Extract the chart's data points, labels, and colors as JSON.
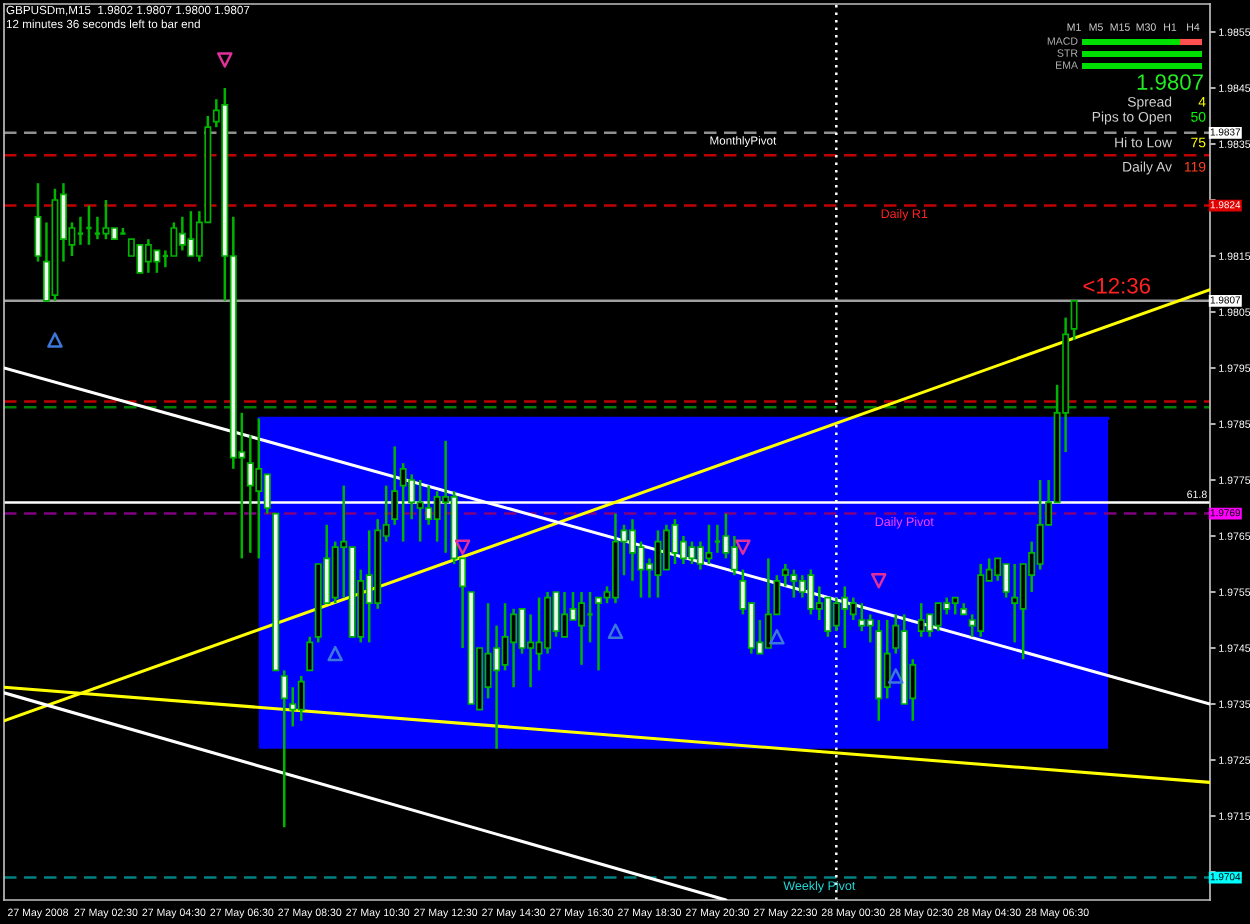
{
  "chart_data": {
    "type": "candlestick",
    "title": "GBPUSDm,M15  1.9802 1.9807 1.9800 1.9807",
    "subtitle": "12 minutes 36 seconds left to bar end",
    "x": [
      "2008-05-27T00:30",
      "2008-05-27T00:45",
      "2008-05-27T01:00",
      "2008-05-27T01:15",
      "2008-05-27T01:30",
      "2008-05-27T01:45",
      "2008-05-27T02:00",
      "2008-05-27T02:15",
      "2008-05-27T02:30",
      "2008-05-27T02:45",
      "2008-05-27T03:00",
      "2008-05-27T03:15",
      "2008-05-27T03:30",
      "2008-05-27T03:45",
      "2008-05-27T04:00",
      "2008-05-27T04:15",
      "2008-05-27T04:30",
      "2008-05-27T04:45",
      "2008-05-27T05:00",
      "2008-05-27T05:15",
      "2008-05-27T05:30",
      "2008-05-27T05:45",
      "2008-05-27T06:00",
      "2008-05-27T06:15",
      "2008-05-27T06:30",
      "2008-05-27T06:45",
      "2008-05-27T07:00",
      "2008-05-27T07:15",
      "2008-05-27T07:30",
      "2008-05-27T07:45",
      "2008-05-27T08:00",
      "2008-05-27T08:15",
      "2008-05-27T08:30",
      "2008-05-27T08:45",
      "2008-05-27T09:00",
      "2008-05-27T09:15",
      "2008-05-27T09:30",
      "2008-05-27T09:45",
      "2008-05-27T10:00",
      "2008-05-27T10:15",
      "2008-05-27T10:30",
      "2008-05-27T10:45",
      "2008-05-27T11:00",
      "2008-05-27T11:15",
      "2008-05-27T11:30",
      "2008-05-27T11:45",
      "2008-05-27T12:00",
      "2008-05-27T12:15",
      "2008-05-27T12:30",
      "2008-05-27T12:45",
      "2008-05-27T13:00",
      "2008-05-27T13:15",
      "2008-05-27T13:30",
      "2008-05-27T13:45",
      "2008-05-27T14:00",
      "2008-05-27T14:15",
      "2008-05-27T14:30",
      "2008-05-27T14:45",
      "2008-05-27T15:00",
      "2008-05-27T15:15",
      "2008-05-27T15:30",
      "2008-05-27T15:45",
      "2008-05-27T16:00",
      "2008-05-27T16:15",
      "2008-05-27T16:30",
      "2008-05-27T16:45",
      "2008-05-27T17:00",
      "2008-05-27T17:15",
      "2008-05-27T17:30",
      "2008-05-27T17:45",
      "2008-05-27T18:00",
      "2008-05-27T18:15",
      "2008-05-27T18:30",
      "2008-05-27T18:45",
      "2008-05-27T19:00",
      "2008-05-27T19:15",
      "2008-05-27T19:30",
      "2008-05-27T19:45",
      "2008-05-27T20:00",
      "2008-05-27T20:15",
      "2008-05-27T20:30",
      "2008-05-27T20:45",
      "2008-05-27T21:00",
      "2008-05-27T21:15",
      "2008-05-27T21:30",
      "2008-05-27T21:45",
      "2008-05-27T22:00",
      "2008-05-27T22:15",
      "2008-05-27T22:30",
      "2008-05-27T22:45",
      "2008-05-27T23:00",
      "2008-05-27T23:15",
      "2008-05-27T23:30",
      "2008-05-27T23:45",
      "2008-05-28T00:00",
      "2008-05-28T00:15",
      "2008-05-28T00:30",
      "2008-05-28T00:45",
      "2008-05-28T01:00",
      "2008-05-28T01:15",
      "2008-05-28T01:30",
      "2008-05-28T01:45",
      "2008-05-28T02:00",
      "2008-05-28T02:15",
      "2008-05-28T02:30",
      "2008-05-28T02:45",
      "2008-05-28T03:00",
      "2008-05-28T03:15",
      "2008-05-28T03:30",
      "2008-05-28T03:45",
      "2008-05-28T04:00",
      "2008-05-28T04:15",
      "2008-05-28T04:30",
      "2008-05-28T04:45",
      "2008-05-28T05:00",
      "2008-05-28T05:15",
      "2008-05-28T05:30",
      "2008-05-28T05:45",
      "2008-05-28T06:00",
      "2008-05-28T06:15",
      "2008-05-28T06:30",
      "2008-05-28T06:45",
      "2008-05-28T07:00"
    ],
    "ohlc": [
      [
        1.9822,
        1.9828,
        1.9814,
        1.9815
      ],
      [
        1.9814,
        1.9821,
        1.9807,
        1.9807
      ],
      [
        1.9808,
        1.9827,
        1.9807,
        1.9825
      ],
      [
        1.9826,
        1.9828,
        1.9814,
        1.9818
      ],
      [
        1.9817,
        1.9821,
        1.9815,
        1.982
      ],
      [
        1.9819,
        1.9822,
        1.9817,
        1.9819
      ],
      [
        1.982,
        1.9824,
        1.9817,
        1.982
      ],
      [
        1.9819,
        1.9822,
        1.9818,
        1.9819
      ],
      [
        1.9819,
        1.9825,
        1.9818,
        1.982
      ],
      [
        1.982,
        1.982,
        1.9818,
        1.9818
      ],
      [
        1.9819,
        1.982,
        1.9819,
        1.9819
      ],
      [
        1.9815,
        1.9818,
        1.9815,
        1.9818
      ],
      [
        1.9817,
        1.9817,
        1.9812,
        1.9812
      ],
      [
        1.9814,
        1.9818,
        1.9812,
        1.9817
      ],
      [
        1.9816,
        1.9816,
        1.9812,
        1.9814
      ],
      [
        1.9815,
        1.9816,
        1.9813,
        1.9815
      ],
      [
        1.9815,
        1.9821,
        1.9815,
        1.982
      ],
      [
        1.9819,
        1.9822,
        1.9816,
        1.9817
      ],
      [
        1.9818,
        1.9823,
        1.9815,
        1.9815
      ],
      [
        1.9815,
        1.9823,
        1.9814,
        1.9821
      ],
      [
        1.9821,
        1.984,
        1.9821,
        1.9838
      ],
      [
        1.9839,
        1.9843,
        1.9838,
        1.9841
      ],
      [
        1.9842,
        1.9845,
        1.9807,
        1.9815
      ],
      [
        1.9815,
        1.9822,
        1.9777,
        1.9779
      ],
      [
        1.978,
        1.9787,
        1.9761,
        1.9779
      ],
      [
        1.9778,
        1.9783,
        1.9762,
        1.9774
      ],
      [
        1.9773,
        1.9786,
        1.9761,
        1.9777
      ],
      [
        1.9776,
        1.9776,
        1.9769,
        1.977
      ],
      [
        1.9769,
        1.9769,
        1.9741,
        1.9741
      ],
      [
        1.974,
        1.9741,
        1.9713,
        1.9736
      ],
      [
        1.9735,
        1.9738,
        1.9731,
        1.9734
      ],
      [
        1.9734,
        1.974,
        1.9732,
        1.9739
      ],
      [
        1.9741,
        1.9747,
        1.9741,
        1.9746
      ],
      [
        1.9747,
        1.976,
        1.9746,
        1.976
      ],
      [
        1.9761,
        1.9767,
        1.9753,
        1.9753
      ],
      [
        1.9754,
        1.9764,
        1.9753,
        1.9763
      ],
      [
        1.9763,
        1.9774,
        1.9754,
        1.9764
      ],
      [
        1.9763,
        1.9763,
        1.9747,
        1.9747
      ],
      [
        1.9747,
        1.9759,
        1.9746,
        1.9757
      ],
      [
        1.9758,
        1.9766,
        1.9746,
        1.9753
      ],
      [
        1.9753,
        1.9768,
        1.9752,
        1.9766
      ],
      [
        1.9765,
        1.9774,
        1.9764,
        1.9767
      ],
      [
        1.9768,
        1.9781,
        1.9767,
        1.9773
      ],
      [
        1.9774,
        1.9778,
        1.9764,
        1.9777
      ],
      [
        1.9775,
        1.9776,
        1.9768,
        1.9771
      ],
      [
        1.977,
        1.9775,
        1.9764,
        1.9771
      ],
      [
        1.977,
        1.9774,
        1.9767,
        1.9768
      ],
      [
        1.9768,
        1.9773,
        1.9764,
        1.9772
      ],
      [
        1.9771,
        1.9782,
        1.9762,
        1.9772
      ],
      [
        1.9772,
        1.9773,
        1.976,
        1.9761
      ],
      [
        1.9761,
        1.9761,
        1.9745,
        1.9756
      ],
      [
        1.9755,
        1.9755,
        1.9735,
        1.9735
      ],
      [
        1.9734,
        1.9745,
        1.9734,
        1.9745
      ],
      [
        1.9738,
        1.9753,
        1.9736,
        1.9744
      ],
      [
        1.9745,
        1.9749,
        1.9727,
        1.9741
      ],
      [
        1.9742,
        1.9753,
        1.9741,
        1.9747
      ],
      [
        1.9746,
        1.9752,
        1.9738,
        1.9751
      ],
      [
        1.9752,
        1.9752,
        1.9744,
        1.9745
      ],
      [
        1.9745,
        1.9751,
        1.9738,
        1.9746
      ],
      [
        1.9744,
        1.9754,
        1.9741,
        1.9746
      ],
      [
        1.9745,
        1.9755,
        1.9744,
        1.9754
      ],
      [
        1.9755,
        1.9755,
        1.9747,
        1.9748
      ],
      [
        1.9747,
        1.9755,
        1.9747,
        1.9751
      ],
      [
        1.9752,
        1.9755,
        1.975,
        1.975
      ],
      [
        1.9749,
        1.9755,
        1.9742,
        1.9753
      ],
      [
        1.9751,
        1.9755,
        1.9746,
        1.9751
      ],
      [
        1.9754,
        1.9754,
        1.9741,
        1.9753
      ],
      [
        1.9754,
        1.9756,
        1.9753,
        1.9755
      ],
      [
        1.9754,
        1.9769,
        1.9753,
        1.9764
      ],
      [
        1.9766,
        1.9767,
        1.9758,
        1.9764
      ],
      [
        1.9766,
        1.9768,
        1.9757,
        1.9762
      ],
      [
        1.9763,
        1.9764,
        1.9754,
        1.9759
      ],
      [
        1.976,
        1.9761,
        1.9754,
        1.9759
      ],
      [
        1.9758,
        1.9766,
        1.9754,
        1.9764
      ],
      [
        1.9759,
        1.9767,
        1.9759,
        1.9766
      ],
      [
        1.9767,
        1.9768,
        1.976,
        1.9762
      ],
      [
        1.9764,
        1.9765,
        1.976,
        1.9761
      ],
      [
        1.9763,
        1.9764,
        1.976,
        1.9761
      ],
      [
        1.9763,
        1.9764,
        1.9759,
        1.976
      ],
      [
        1.9761,
        1.9767,
        1.976,
        1.9762
      ],
      [
        1.9764,
        1.9767,
        1.9762,
        1.9764
      ],
      [
        1.9765,
        1.9769,
        1.9761,
        1.9762
      ],
      [
        1.9763,
        1.9765,
        1.9758,
        1.9759
      ],
      [
        1.9757,
        1.9759,
        1.9751,
        1.9752
      ],
      [
        1.9753,
        1.9753,
        1.9744,
        1.9745
      ],
      [
        1.9746,
        1.975,
        1.9744,
        1.9744
      ],
      [
        1.9745,
        1.9761,
        1.9745,
        1.9751
      ],
      [
        1.9751,
        1.9758,
        1.9751,
        1.9757
      ],
      [
        1.9758,
        1.976,
        1.9756,
        1.9759
      ],
      [
        1.9758,
        1.9759,
        1.9754,
        1.9757
      ],
      [
        1.9757,
        1.9758,
        1.9754,
        1.9755
      ],
      [
        1.9758,
        1.9759,
        1.9751,
        1.9752
      ],
      [
        1.9752,
        1.9756,
        1.975,
        1.9753
      ],
      [
        1.9754,
        1.9754,
        1.9747,
        1.9748
      ],
      [
        1.9749,
        1.9754,
        1.9748,
        1.9753
      ],
      [
        1.9754,
        1.9756,
        1.9745,
        1.9752
      ],
      [
        1.9751,
        1.9754,
        1.975,
        1.9753
      ],
      [
        1.975,
        1.9753,
        1.9748,
        1.9749
      ],
      [
        1.975,
        1.9751,
        1.9746,
        1.9749
      ],
      [
        1.9748,
        1.975,
        1.9732,
        1.9736
      ],
      [
        1.9738,
        1.975,
        1.9736,
        1.9744
      ],
      [
        1.9745,
        1.9751,
        1.9744,
        1.9749
      ],
      [
        1.9748,
        1.9751,
        1.9735,
        1.9735
      ],
      [
        1.9736,
        1.9743,
        1.9732,
        1.9742
      ],
      [
        1.9748,
        1.9753,
        1.9747,
        1.975
      ],
      [
        1.9751,
        1.9751,
        1.9747,
        1.9748
      ],
      [
        1.9749,
        1.9753,
        1.9748,
        1.9753
      ],
      [
        1.9753,
        1.9754,
        1.9751,
        1.9752
      ],
      [
        1.9753,
        1.9754,
        1.9751,
        1.9754
      ],
      [
        1.9752,
        1.9753,
        1.9751,
        1.9751
      ],
      [
        1.975,
        1.9751,
        1.9747,
        1.9749
      ],
      [
        1.9748,
        1.976,
        1.9747,
        1.9758
      ],
      [
        1.9757,
        1.9761,
        1.9757,
        1.9759
      ],
      [
        1.9758,
        1.9761,
        1.9757,
        1.9761
      ],
      [
        1.976,
        1.976,
        1.9754,
        1.9755
      ],
      [
        1.9753,
        1.976,
        1.9746,
        1.9754
      ],
      [
        1.9752,
        1.976,
        1.9743,
        1.976
      ],
      [
        1.9758,
        1.9764,
        1.9755,
        1.9762
      ],
      [
        1.976,
        1.9775,
        1.9759,
        1.9767
      ],
      [
        1.9767,
        1.9775,
        1.9767,
        1.9771
      ],
      [
        1.9771,
        1.9792,
        1.9771,
        1.9787
      ],
      [
        1.9787,
        1.9804,
        1.978,
        1.9801
      ],
      [
        1.9802,
        1.9807,
        1.98,
        1.9807
      ]
    ],
    "color": "#00b400",
    "colors": [
      "#f0fff0",
      "#f0fff0",
      "#000000",
      "#f0fff0",
      "#000000",
      "#00b400",
      "#00b400",
      "#00b400",
      "#000000",
      "#f0fff0",
      "#00b400",
      "#000000",
      "#f0fff0",
      "#000000",
      "#f0fff0",
      "#00b400",
      "#000000",
      "#f0fff0",
      "#f0fff0",
      "#000000",
      "#000000",
      "#000000",
      "#f0fff0",
      "#f0fff0",
      "#f0fff0",
      "#f0fff0",
      "#000000",
      "#f0fff0",
      "#f0fff0",
      "#f0fff0",
      "#f0fff0",
      "#000000",
      "#000000",
      "#000000",
      "#f0fff0",
      "#000000",
      "#000000",
      "#f0fff0",
      "#000000",
      "#f0fff0",
      "#000000",
      "#000000",
      "#000000",
      "#000000",
      "#f0fff0",
      "#000000",
      "#f0fff0",
      "#000000",
      "#000000",
      "#f0fff0",
      "#f0fff0",
      "#f0fff0",
      "#000000",
      "#000000",
      "#f0fff0",
      "#000000",
      "#000000",
      "#f0fff0",
      "#000000",
      "#000000",
      "#000000",
      "#f0fff0",
      "#000000",
      "#f0fff0",
      "#000000",
      "#00b400",
      "#f0fff0",
      "#000000",
      "#000000",
      "#f0fff0",
      "#f0fff0",
      "#f0fff0",
      "#f0fff0",
      "#000000",
      "#000000",
      "#f0fff0",
      "#f0fff0",
      "#f0fff0",
      "#f0fff0",
      "#000000",
      "#00b400",
      "#f0fff0",
      "#f0fff0",
      "#f0fff0",
      "#f0fff0",
      "#f0fff0",
      "#000000",
      "#000000",
      "#000000",
      "#f0fff0",
      "#f0fff0",
      "#f0fff0",
      "#000000",
      "#f0fff0",
      "#000000",
      "#f0fff0",
      "#000000",
      "#f0fff0",
      "#f0fff0",
      "#f0fff0",
      "#000000",
      "#000000",
      "#f0fff0",
      "#000000",
      "#000000",
      "#f0fff0",
      "#000000",
      "#f0fff0",
      "#000000",
      "#f0fff0",
      "#f0fff0",
      "#000000",
      "#000000",
      "#000000",
      "#f0fff0",
      "#000000",
      "#000000",
      "#000000",
      "#000000",
      "#000000",
      "#000000",
      "#000000",
      "#000000"
    ],
    "series": [
      {
        "type": "line",
        "x": [
          "2008-05-27T07:00",
          "2008-05-28T08:00"
        ],
        "values": [
          1.9786,
          1.9786
        ],
        "lower": [
          1.9727,
          1.9727
        ],
        "upper": [
          1.9786,
          1.9786
        ],
        "color": "#0000ff"
      },
      {
        "type": "line",
        "x": [
          "2008-05-26T23:30",
          "2008-05-28T11:00"
        ],
        "values": [
          1.9732,
          1.9809
        ],
        "color": "#ffff00"
      },
      {
        "type": "line",
        "x": [
          "2008-05-26T23:30",
          "2008-05-28T11:00"
        ],
        "values": [
          1.9795,
          1.9735
        ],
        "color": "#ffffff"
      },
      {
        "type": "line",
        "x": [
          "2008-05-26T23:30",
          "2008-05-28T11:00"
        ],
        "values": [
          1.9738,
          1.9721
        ],
        "color": "#ffff00"
      },
      {
        "type": "line",
        "x": [
          "2008-05-26T23:30",
          "2008-05-27T20:45"
        ],
        "values": [
          1.9737,
          1.97
        ],
        "color": "#ffffff"
      },
      {
        "type": "scatter",
        "x": [
          "2008-05-27T06:00",
          "2008-05-27T13:00",
          "2008-05-27T21:15",
          "2008-05-28T01:15"
        ],
        "values": [
          1.985,
          1.9763,
          1.9763,
          1.9757
        ],
        "color": "#e0309a",
        "marker": "triangle"
      },
      {
        "type": "scatter",
        "x": [
          "2008-05-27T01:00",
          "2008-05-27T09:15",
          "2008-05-27T17:30",
          "2008-05-27T22:15",
          "2008-05-28T01:45"
        ],
        "values": [
          1.98,
          1.9744,
          1.9748,
          1.9747,
          1.974
        ],
        "color": "#3c78d8",
        "marker": "triangle"
      }
    ],
    "xlim": [
      "2008-05-26T23:30",
      "2008-05-28T11:00"
    ],
    "xticks": [
      {
        "value": "2008-05-27T00:30",
        "label": "27 May 2008"
      },
      {
        "value": "2008-05-27T02:30",
        "label": "27 May 02:30"
      },
      {
        "value": "2008-05-27T04:30",
        "label": "27 May 04:30"
      },
      {
        "value": "2008-05-27T06:30",
        "label": "27 May 06:30"
      },
      {
        "value": "2008-05-27T08:30",
        "label": "27 May 08:30"
      },
      {
        "value": "2008-05-27T10:30",
        "label": "27 May 10:30"
      },
      {
        "value": "2008-05-27T12:30",
        "label": "27 May 12:30"
      },
      {
        "value": "2008-05-27T14:30",
        "label": "27 May 14:30"
      },
      {
        "value": "2008-05-27T16:30",
        "label": "27 May 16:30"
      },
      {
        "value": "2008-05-27T18:30",
        "label": "27 May 18:30"
      },
      {
        "value": "2008-05-27T20:30",
        "label": "27 May 20:30"
      },
      {
        "value": "2008-05-27T22:30",
        "label": "27 May 22:30"
      },
      {
        "value": "2008-05-28T00:30",
        "label": "28 May 00:30"
      },
      {
        "value": "2008-05-28T02:30",
        "label": "28 May 02:30"
      },
      {
        "value": "2008-05-28T04:30",
        "label": "28 May 04:30"
      },
      {
        "value": "2008-05-28T06:30",
        "label": "28 May 06:30"
      }
    ],
    "ylim": [
      1.97,
      1.986
    ],
    "yticks": [
      {
        "value": 1.9705,
        "label": null
      },
      1.9715,
      1.9725,
      1.9735,
      1.9745,
      1.9755,
      1.9765,
      1.9775,
      1.9785,
      1.9795,
      1.9805,
      1.9815,
      {
        "value": 1.9825,
        "label": null
      },
      1.9835,
      1.9845,
      1.9855
    ],
    "ref_lines": [
      {
        "axis": "y",
        "value": 1.9837,
        "color": "#909090",
        "line_style": "dashed"
      },
      {
        "axis": "y",
        "value": 1.9833,
        "color": "#c00000",
        "line_style": "dashed"
      },
      {
        "axis": "y",
        "value": 1.9824,
        "color": "#c00000",
        "line_style": "dashed"
      },
      {
        "axis": "y",
        "value": 1.9807,
        "color": "#a0a0a0",
        "line_style": "solid"
      },
      {
        "axis": "y",
        "value": 1.9789,
        "color": "#c00000",
        "line_style": "dashed"
      },
      {
        "axis": "y",
        "value": 1.9788,
        "color": "#008000",
        "line_style": "dashed"
      },
      {
        "axis": "y",
        "value": 1.9771,
        "color": "#ffffff",
        "line_style": "solid"
      },
      {
        "axis": "y",
        "value": 1.9769,
        "color": "#800080",
        "line_style": "dashed"
      },
      {
        "axis": "y",
        "value": 1.9704,
        "color": "#008080",
        "line_style": "dashed"
      },
      {
        "axis": "x",
        "value": "2008-05-28T00:00",
        "color": "#ffffff",
        "line_style": "dotted"
      }
    ],
    "annotations": [
      "M1",
      "M5",
      "M15",
      "M30",
      "H1",
      "H4",
      "MACD",
      "STR",
      "EMA",
      "1.9807",
      "Spread",
      "4",
      "Pips to Open",
      "50",
      "Hi to Low",
      "75",
      "Daily Av",
      "119",
      {
        "text": "MonthlyPivot",
        "x": "2008-05-27T21:15",
        "y": 1.9837
      },
      {
        "text": "Daily R1",
        "x": "2008-05-28T02:00",
        "y": 1.9824
      },
      {
        "text": "Daily Pivot",
        "x": "2008-05-28T02:00",
        "y": 1.9769
      },
      {
        "text": "Weekly Pivot",
        "x": "2008-05-27T23:30",
        "y": 1.9704
      },
      {
        "text": "61.8",
        "x": "2008-05-28T11:00",
        "y": 1.9771
      },
      {
        "text": "<12:36",
        "x": "2008-05-28T07:00",
        "y": 1.9807
      },
      {
        "text": "1.9837",
        "y": 1.9837
      },
      {
        "text": "1.9824",
        "y": 1.9824
      },
      {
        "text": "1.9807",
        "y": 1.9807
      },
      {
        "text": "1.9769",
        "y": 1.9769
      },
      {
        "text": "1.9704",
        "y": 1.9704
      }
    ]
  }
}
